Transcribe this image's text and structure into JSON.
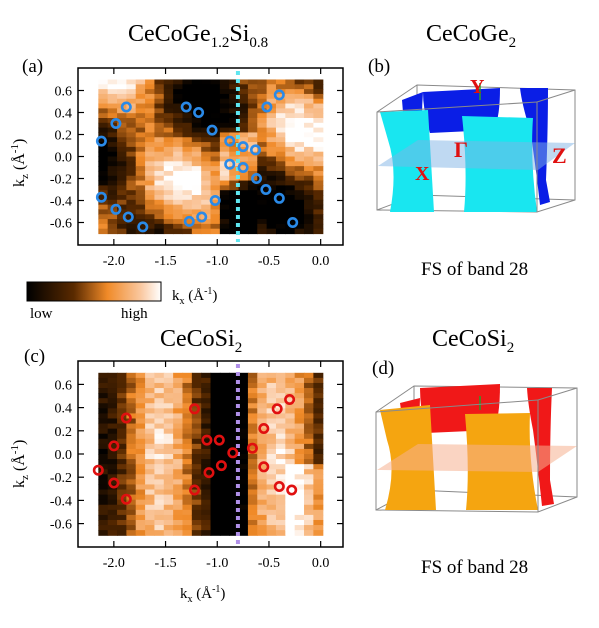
{
  "panels": [
    {
      "id": "a",
      "label": "(a)",
      "title_main": "CeCoGe",
      "title_sub1": "1.2",
      "title_mid": "Si",
      "title_sub2": "0.8",
      "xlabel": "k_x (Å^-1)",
      "ylabel": "k_z (Å^-1)"
    },
    {
      "id": "b",
      "label": "(b)",
      "title_main": "CeCoGe",
      "title_sub": "2",
      "caption": "FS of band 28",
      "point_labels": [
        "Y",
        "Γ",
        "X",
        "Z"
      ],
      "colors": {
        "outer": "#0a1ee6",
        "inner": "#19e6f0",
        "plane": "#7fb4e6",
        "labels": "#e01010"
      }
    },
    {
      "id": "c",
      "label": "(c)",
      "title_main": "CeCoSi",
      "title_sub": "2",
      "xlabel": "k_x (Å^-1)",
      "ylabel": "k_z (Å^-1)"
    },
    {
      "id": "d",
      "label": "(d)",
      "title_main": "CeCoSi",
      "title_sub": "2",
      "caption": "FS of band 28",
      "colors": {
        "outer": "#f01818",
        "inner": "#f5a510",
        "plane": "#f5b090"
      }
    }
  ],
  "colorbar": {
    "low_label": "low",
    "high_label": "high"
  },
  "chart_data": [
    {
      "type": "heatmap",
      "panel": "a",
      "title": "CeCoGe1.2Si0.8",
      "xlabel": "kx (Å-1)",
      "ylabel": "kz (Å-1)",
      "xlim": [
        -2.25,
        0.1
      ],
      "ylim": [
        -0.75,
        0.75
      ],
      "xticks": [
        -2.0,
        -1.5,
        -1.0,
        -0.5,
        0.0
      ],
      "xtick_labels": [
        "-2.0",
        "-1.5",
        "-1.0",
        "-0.5",
        "0.0"
      ],
      "yticks": [
        0.6,
        0.4,
        0.2,
        0.0,
        -0.2,
        -0.4,
        -0.6
      ],
      "ytick_labels": [
        "0.6",
        "0.4",
        "0.2",
        "0.0",
        "-0.2",
        "-0.4",
        "-0.6"
      ],
      "vline_x": -0.8,
      "vline_color": "#5fe6f0",
      "marker_color": "#2a8ae8",
      "points": [
        [
          -2.12,
          0.14
        ],
        [
          -1.98,
          0.3
        ],
        [
          -1.88,
          0.45
        ],
        [
          -2.12,
          -0.37
        ],
        [
          -1.98,
          -0.48
        ],
        [
          -1.86,
          -0.55
        ],
        [
          -1.72,
          -0.64
        ],
        [
          -1.3,
          0.45
        ],
        [
          -1.18,
          0.4
        ],
        [
          -1.05,
          0.24
        ],
        [
          -1.27,
          -0.59
        ],
        [
          -1.15,
          -0.55
        ],
        [
          -1.02,
          -0.4
        ],
        [
          -0.88,
          0.14
        ],
        [
          -0.75,
          0.09
        ],
        [
          -0.63,
          0.06
        ],
        [
          -0.88,
          -0.07
        ],
        [
          -0.75,
          -0.1
        ],
        [
          -0.62,
          -0.2
        ],
        [
          -0.52,
          0.45
        ],
        [
          -0.4,
          0.56
        ],
        [
          -0.53,
          -0.3
        ],
        [
          -0.4,
          -0.38
        ],
        [
          -0.27,
          -0.6
        ]
      ]
    },
    {
      "type": "heatmap",
      "panel": "c",
      "title": "CeCoSi2",
      "xlabel": "kx (Å-1)",
      "ylabel": "kz (Å-1)",
      "xlim": [
        -2.25,
        0.1
      ],
      "ylim": [
        -0.75,
        0.75
      ],
      "xticks": [
        -2.0,
        -1.5,
        -1.0,
        -0.5,
        0.0
      ],
      "xtick_labels": [
        "-2.0",
        "-1.5",
        "-1.0",
        "-0.5",
        "0.0"
      ],
      "yticks": [
        0.6,
        0.4,
        0.2,
        0.0,
        -0.2,
        -0.4,
        -0.6
      ],
      "ytick_labels": [
        "0.6",
        "0.4",
        "0.2",
        "0.0",
        "-0.2",
        "-0.4",
        "-0.6"
      ],
      "vline_x": -0.8,
      "vline_color": "#b090e8",
      "marker_color": "#e01010",
      "points": [
        [
          -2.15,
          -0.14
        ],
        [
          -2.0,
          0.07
        ],
        [
          -1.88,
          0.31
        ],
        [
          -2.0,
          -0.25
        ],
        [
          -1.88,
          -0.39
        ],
        [
          -1.22,
          0.39
        ],
        [
          -1.1,
          0.12
        ],
        [
          -0.98,
          0.12
        ],
        [
          -0.85,
          0.01
        ],
        [
          -1.22,
          -0.31
        ],
        [
          -1.08,
          -0.16
        ],
        [
          -0.96,
          -0.1
        ],
        [
          -0.66,
          0.05
        ],
        [
          -0.55,
          0.22
        ],
        [
          -0.42,
          0.39
        ],
        [
          -0.3,
          0.47
        ],
        [
          -0.55,
          -0.11
        ],
        [
          -0.4,
          -0.28
        ],
        [
          -0.28,
          -0.31
        ]
      ]
    }
  ]
}
